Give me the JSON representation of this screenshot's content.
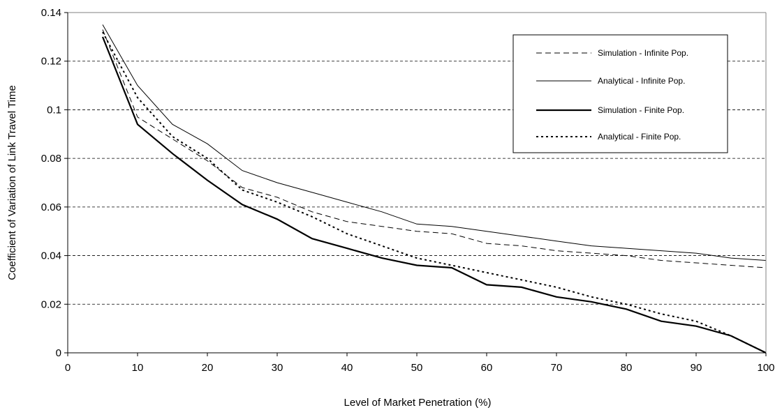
{
  "chart_data": {
    "type": "line",
    "title": "",
    "xlabel": "Level of Market Penetration (%)",
    "ylabel": "Coefficient of Variation of Link Travel Time",
    "xlim": [
      0,
      100
    ],
    "ylim": [
      0,
      0.14
    ],
    "xticks": [
      "0",
      "10",
      "20",
      "30",
      "40",
      "50",
      "60",
      "70",
      "80",
      "90",
      "100"
    ],
    "yticks": [
      "0",
      "0.02",
      "0.04",
      "0.06",
      "0.08",
      "0.1",
      "0.12",
      "0.14"
    ],
    "grid": "horizontal dashed",
    "legend_position": "top-right",
    "x": [
      5,
      10,
      15,
      20,
      25,
      30,
      35,
      40,
      45,
      50,
      55,
      60,
      65,
      70,
      75,
      80,
      85,
      90,
      95,
      100
    ],
    "series": [
      {
        "name": "Simulation - Infinite Pop.",
        "style": "dashed",
        "color": "#000000",
        "values": [
          0.133,
          0.097,
          0.088,
          0.079,
          0.068,
          0.064,
          0.058,
          0.054,
          0.052,
          0.05,
          0.049,
          0.045,
          0.044,
          0.042,
          0.041,
          0.04,
          0.038,
          0.037,
          0.036,
          0.035
        ]
      },
      {
        "name": "Analytical - Infinite Pop.",
        "style": "thin",
        "color": "#000000",
        "values": [
          0.135,
          0.11,
          0.094,
          0.086,
          0.075,
          0.07,
          0.066,
          0.062,
          0.058,
          0.053,
          0.052,
          0.05,
          0.048,
          0.046,
          0.044,
          0.043,
          0.042,
          0.041,
          0.039,
          0.038
        ]
      },
      {
        "name": "Simulation - Finite Pop.",
        "style": "thick",
        "color": "#000000",
        "values": [
          0.13,
          0.094,
          0.082,
          0.071,
          0.061,
          0.055,
          0.047,
          0.043,
          0.039,
          0.036,
          0.035,
          0.028,
          0.027,
          0.023,
          0.021,
          0.018,
          0.013,
          0.011,
          0.007,
          0.0
        ]
      },
      {
        "name": "Analytical - Finite Pop.",
        "style": "dotted",
        "color": "#000000",
        "values": [
          0.132,
          0.105,
          0.089,
          0.08,
          0.067,
          0.062,
          0.056,
          0.049,
          0.044,
          0.039,
          0.036,
          0.033,
          0.03,
          0.027,
          0.023,
          0.02,
          0.016,
          0.013,
          0.007,
          0.0
        ]
      }
    ]
  }
}
